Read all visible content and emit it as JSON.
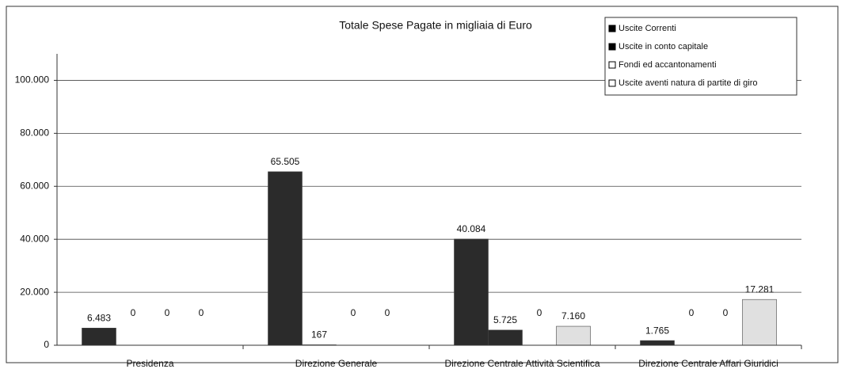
{
  "chart_data": {
    "type": "bar",
    "title": "Totale Spese Pagate in migliaia di Euro",
    "categories": [
      "Presidenza",
      "Direzione Generale",
      "Direzione Centrale Attività Scientifica",
      "Direzione Centrale Affari Giuridici"
    ],
    "series": [
      {
        "name": "Uscite Correnti",
        "color": "#2b2b2b",
        "values": [
          6483,
          65505,
          40084,
          1765
        ],
        "value_labels": [
          "6.483",
          "65.505",
          "40.084",
          "1.765"
        ]
      },
      {
        "name": "Uscite in conto capitale",
        "color": "#2b2b2b",
        "values": [
          0,
          167,
          5725,
          0
        ],
        "value_labels": [
          "0",
          "167",
          "5.725",
          "0"
        ]
      },
      {
        "name": "Fondi ed accantonamenti",
        "color": "#e6e6e6",
        "values": [
          0,
          0,
          0,
          0
        ],
        "value_labels": [
          "0",
          "0",
          "0",
          "0"
        ]
      },
      {
        "name": "Uscite aventi natura di partite di giro",
        "color": "#e0e0e0",
        "values": [
          0,
          0,
          7160,
          17281
        ],
        "value_labels": [
          "0",
          "0",
          "7.160",
          "17.281"
        ]
      }
    ],
    "ylim": [
      0,
      110000
    ],
    "yticks": [
      0,
      {
        "value": 20000,
        "label": "20.000"
      },
      {
        "value": 40000,
        "label": "40.000"
      },
      {
        "value": 60000,
        "label": "60.000"
      },
      {
        "value": 80000,
        "label": "80.000"
      },
      {
        "value": 100000,
        "label": "100.000"
      }
    ],
    "grid": true,
    "legend": "top-right"
  }
}
